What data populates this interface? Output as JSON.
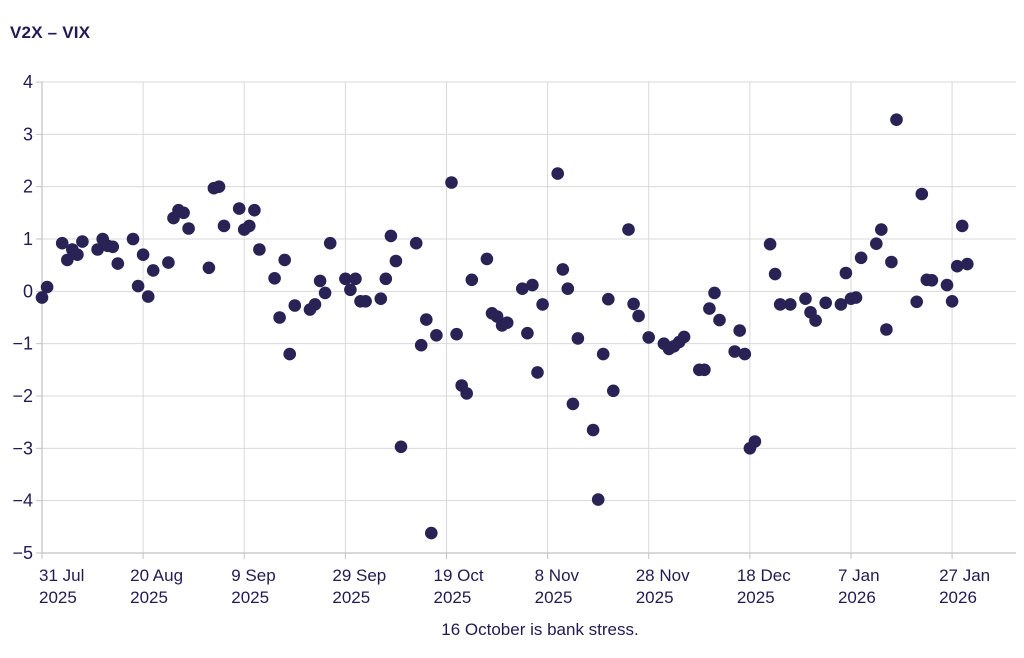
{
  "title": "V2X – VIX",
  "caption": "16 October is bank stress.",
  "colors": {
    "background": "#ffffff",
    "text": "#221a52",
    "dot": "#282255",
    "grid": "#d9d9d9",
    "axis": "#c2c2c2"
  },
  "chart_data": {
    "type": "scatter",
    "title": "V2X – VIX",
    "xlabel": "",
    "ylabel": "",
    "annotation": "16 October is bank stress.",
    "grid": true,
    "legend": "none",
    "ylim": [
      -5,
      4
    ],
    "y_ticks": [
      4,
      3,
      2,
      1,
      0,
      -1,
      -2,
      -3,
      -4,
      -5
    ],
    "x_ticks": [
      {
        "line1": "31 Jul",
        "line2": "2025",
        "date": "2025-07-31"
      },
      {
        "line1": "20 Aug",
        "line2": "2025",
        "date": "2025-08-20"
      },
      {
        "line1": "9 Sep",
        "line2": "2025",
        "date": "2025-09-09"
      },
      {
        "line1": "29 Sep",
        "line2": "2025",
        "date": "2025-09-29"
      },
      {
        "line1": "19 Oct",
        "line2": "2025",
        "date": "2025-10-19"
      },
      {
        "line1": "8 Nov",
        "line2": "2025",
        "date": "2025-11-08"
      },
      {
        "line1": "28 Nov",
        "line2": "2025",
        "date": "2025-11-28"
      },
      {
        "line1": "18 Dec",
        "line2": "2025",
        "date": "2025-12-18"
      },
      {
        "line1": "7 Jan",
        "line2": "2026",
        "date": "2026-01-07"
      },
      {
        "line1": "27 Jan",
        "line2": "2026",
        "date": "2026-01-27"
      }
    ],
    "points": [
      [
        "2025-07-31",
        -0.12
      ],
      [
        "2025-08-01",
        0.08
      ],
      [
        "2025-08-04",
        0.92
      ],
      [
        "2025-08-05",
        0.6
      ],
      [
        "2025-08-06",
        0.8
      ],
      [
        "2025-08-07",
        0.7
      ],
      [
        "2025-08-08",
        0.95
      ],
      [
        "2025-08-11",
        0.8
      ],
      [
        "2025-08-12",
        1.0
      ],
      [
        "2025-08-13",
        0.87
      ],
      [
        "2025-08-14",
        0.85
      ],
      [
        "2025-08-15",
        0.53
      ],
      [
        "2025-08-18",
        1.0
      ],
      [
        "2025-08-19",
        0.1
      ],
      [
        "2025-08-20",
        0.7
      ],
      [
        "2025-08-21",
        -0.1
      ],
      [
        "2025-08-22",
        0.4
      ],
      [
        "2025-08-25",
        0.55
      ],
      [
        "2025-08-26",
        1.4
      ],
      [
        "2025-08-27",
        1.55
      ],
      [
        "2025-08-28",
        1.5
      ],
      [
        "2025-08-29",
        1.2
      ],
      [
        "2025-09-02",
        0.45
      ],
      [
        "2025-09-03",
        1.97
      ],
      [
        "2025-09-04",
        2.0
      ],
      [
        "2025-09-05",
        1.25
      ],
      [
        "2025-09-08",
        1.58
      ],
      [
        "2025-09-09",
        1.18
      ],
      [
        "2025-09-10",
        1.25
      ],
      [
        "2025-09-11",
        1.55
      ],
      [
        "2025-09-12",
        0.8
      ],
      [
        "2025-09-15",
        0.25
      ],
      [
        "2025-09-16",
        -0.5
      ],
      [
        "2025-09-17",
        0.6
      ],
      [
        "2025-09-18",
        -1.2
      ],
      [
        "2025-09-19",
        -0.27
      ],
      [
        "2025-09-22",
        -0.35
      ],
      [
        "2025-09-23",
        -0.25
      ],
      [
        "2025-09-24",
        0.2
      ],
      [
        "2025-09-25",
        -0.03
      ],
      [
        "2025-09-26",
        0.92
      ],
      [
        "2025-09-29",
        0.24
      ],
      [
        "2025-09-30",
        0.03
      ],
      [
        "2025-10-01",
        0.24
      ],
      [
        "2025-10-02",
        -0.19
      ],
      [
        "2025-10-03",
        -0.19
      ],
      [
        "2025-10-06",
        -0.14
      ],
      [
        "2025-10-07",
        0.24
      ],
      [
        "2025-10-08",
        1.06
      ],
      [
        "2025-10-09",
        0.58
      ],
      [
        "2025-10-10",
        -2.97
      ],
      [
        "2025-10-13",
        0.92
      ],
      [
        "2025-10-14",
        -1.03
      ],
      [
        "2025-10-15",
        -0.54
      ],
      [
        "2025-10-16",
        -4.62
      ],
      [
        "2025-10-17",
        -0.84
      ],
      [
        "2025-10-20",
        2.08
      ],
      [
        "2025-10-21",
        -0.82
      ],
      [
        "2025-10-22",
        -1.8
      ],
      [
        "2025-10-23",
        -1.95
      ],
      [
        "2025-10-24",
        0.22
      ],
      [
        "2025-10-27",
        0.62
      ],
      [
        "2025-10-28",
        -0.42
      ],
      [
        "2025-10-29",
        -0.48
      ],
      [
        "2025-10-30",
        -0.65
      ],
      [
        "2025-10-31",
        -0.6
      ],
      [
        "2025-11-03",
        0.05
      ],
      [
        "2025-11-04",
        -0.8
      ],
      [
        "2025-11-05",
        0.12
      ],
      [
        "2025-11-06",
        -1.55
      ],
      [
        "2025-11-07",
        -0.25
      ],
      [
        "2025-11-10",
        2.25
      ],
      [
        "2025-11-11",
        0.42
      ],
      [
        "2025-11-12",
        0.05
      ],
      [
        "2025-11-13",
        -2.15
      ],
      [
        "2025-11-14",
        -0.9
      ],
      [
        "2025-11-17",
        -2.65
      ],
      [
        "2025-11-18",
        -3.98
      ],
      [
        "2025-11-19",
        -1.2
      ],
      [
        "2025-11-20",
        -0.15
      ],
      [
        "2025-11-21",
        -1.9
      ],
      [
        "2025-11-24",
        1.18
      ],
      [
        "2025-11-25",
        -0.24
      ],
      [
        "2025-11-26",
        -0.47
      ],
      [
        "2025-11-28",
        -0.88
      ],
      [
        "2025-12-01",
        -1.0
      ],
      [
        "2025-12-02",
        -1.1
      ],
      [
        "2025-12-03",
        -1.05
      ],
      [
        "2025-12-04",
        -0.97
      ],
      [
        "2025-12-05",
        -0.87
      ],
      [
        "2025-12-08",
        -1.5
      ],
      [
        "2025-12-09",
        -1.5
      ],
      [
        "2025-12-10",
        -0.33
      ],
      [
        "2025-12-11",
        -0.03
      ],
      [
        "2025-12-12",
        -0.55
      ],
      [
        "2025-12-15",
        -1.15
      ],
      [
        "2025-12-16",
        -0.75
      ],
      [
        "2025-12-17",
        -1.2
      ],
      [
        "2025-12-18",
        -3.0
      ],
      [
        "2025-12-19",
        -2.87
      ],
      [
        "2025-12-22",
        0.9
      ],
      [
        "2025-12-23",
        0.33
      ],
      [
        "2025-12-24",
        -0.25
      ],
      [
        "2025-12-26",
        -0.25
      ],
      [
        "2025-12-29",
        -0.14
      ],
      [
        "2025-12-30",
        -0.4
      ],
      [
        "2025-12-31",
        -0.56
      ],
      [
        "2026-01-02",
        -0.22
      ],
      [
        "2026-01-05",
        -0.25
      ],
      [
        "2026-01-06",
        0.35
      ],
      [
        "2026-01-07",
        -0.14
      ],
      [
        "2026-01-08",
        -0.12
      ],
      [
        "2026-01-09",
        0.64
      ],
      [
        "2026-01-12",
        0.91
      ],
      [
        "2026-01-13",
        1.18
      ],
      [
        "2026-01-14",
        -0.73
      ],
      [
        "2026-01-15",
        0.56
      ],
      [
        "2026-01-16",
        3.28
      ],
      [
        "2026-01-20",
        -0.2
      ],
      [
        "2026-01-21",
        1.86
      ],
      [
        "2026-01-22",
        0.22
      ],
      [
        "2026-01-23",
        0.21
      ],
      [
        "2026-01-26",
        0.12
      ],
      [
        "2026-01-27",
        -0.19
      ],
      [
        "2026-01-28",
        0.48
      ],
      [
        "2026-01-29",
        1.25
      ],
      [
        "2026-01-30",
        0.52
      ]
    ]
  }
}
